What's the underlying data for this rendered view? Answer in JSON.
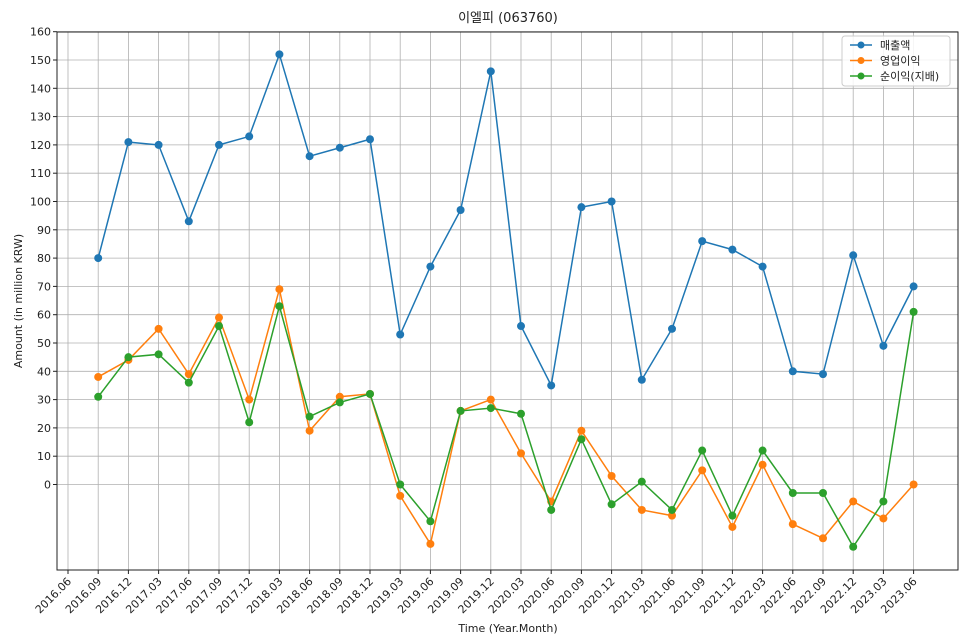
{
  "chart_data": {
    "type": "line",
    "title": "이엘피 (063760)",
    "xlabel": "Time (Year.Month)",
    "ylabel": "Amount (in million KRW)",
    "x_ticks": [
      "2016.06",
      "2016.09",
      "2016.12",
      "2017.03",
      "2017.06",
      "2017.09",
      "2017.12",
      "2018.03",
      "2018.06",
      "2018.09",
      "2018.12",
      "2019.03",
      "2019.06",
      "2019.09",
      "2019.12",
      "2020.03",
      "2020.06",
      "2020.09",
      "2020.12",
      "2021.03",
      "2021.06",
      "2021.09",
      "2021.12",
      "2022.03",
      "2022.06",
      "2022.09",
      "2022.12",
      "2023.03",
      "2023.06"
    ],
    "x": [
      "2016.09",
      "2016.12",
      "2017.03",
      "2017.06",
      "2017.09",
      "2017.12",
      "2018.03",
      "2018.06",
      "2018.09",
      "2018.12",
      "2019.03",
      "2019.06",
      "2019.09",
      "2019.12",
      "2020.03",
      "2020.06",
      "2020.09",
      "2020.12",
      "2021.03",
      "2021.06",
      "2021.09",
      "2021.12",
      "2022.03",
      "2022.06",
      "2022.09",
      "2022.12",
      "2023.03",
      "2023.06"
    ],
    "y_ticks": [
      0,
      10,
      20,
      30,
      40,
      50,
      60,
      70,
      80,
      90,
      100,
      110,
      120,
      130,
      140,
      150,
      160
    ],
    "ylim": [
      -30,
      160
    ],
    "grid": true,
    "legend_position": "top-right",
    "series": [
      {
        "name": "매출액",
        "color": "#1f77b4",
        "values": [
          80,
          121,
          120,
          93,
          120,
          123,
          152,
          116,
          119,
          122,
          53,
          77,
          97,
          146,
          56,
          35,
          98,
          100,
          37,
          55,
          86,
          83,
          77,
          40,
          39,
          81,
          49,
          70
        ]
      },
      {
        "name": "영업이익",
        "color": "#ff7f0e",
        "values": [
          38,
          44,
          55,
          39,
          59,
          30,
          69,
          19,
          31,
          32,
          -4,
          -21,
          26,
          30,
          11,
          -6,
          19,
          3,
          -9,
          -11,
          5,
          -15,
          7,
          -14,
          -19,
          -6,
          -12,
          0
        ]
      },
      {
        "name": "순이익(지배)",
        "color": "#2ca02c",
        "values": [
          31,
          45,
          46,
          36,
          56,
          22,
          63,
          24,
          29,
          32,
          0,
          -13,
          26,
          27,
          25,
          -9,
          16,
          -7,
          1,
          -9,
          12,
          -11,
          12,
          -3,
          -3,
          -22,
          -6,
          61
        ]
      }
    ]
  }
}
